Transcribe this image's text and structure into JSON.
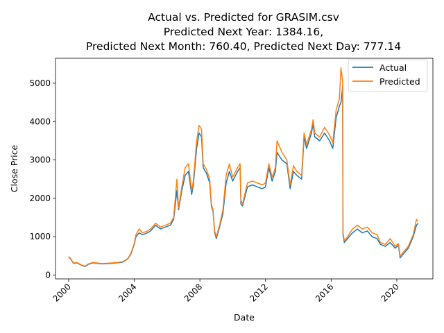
{
  "chart_data": {
    "type": "line",
    "title_lines": [
      "Actual vs. Predicted for GRASIM.csv",
      "Predicted Next Year: 1384.16,",
      "Predicted Next Month: 760.40, Predicted Next Day: 777.14"
    ],
    "xlabel": "Date",
    "ylabel": "Close Price",
    "xlim": [
      1999.2,
      2022.2
    ],
    "ylim": [
      -100,
      5650
    ],
    "x_ticks": [
      2000,
      2004,
      2008,
      2012,
      2016,
      2020
    ],
    "x_tick_labels": [
      "2000",
      "2004",
      "2008",
      "2012",
      "2016",
      "2020"
    ],
    "y_ticks": [
      0,
      1000,
      2000,
      3000,
      4000,
      5000
    ],
    "y_tick_labels": [
      "0",
      "1000",
      "2000",
      "3000",
      "4000",
      "5000"
    ],
    "grid": false,
    "legend": {
      "placement": "top-right"
    },
    "series": [
      {
        "name": "Actual",
        "color": "#1f77b4",
        "points": [
          [
            2000.0,
            470
          ],
          [
            2000.1,
            430
          ],
          [
            2000.3,
            300
          ],
          [
            2000.5,
            320
          ],
          [
            2000.8,
            250
          ],
          [
            2001.0,
            220
          ],
          [
            2001.2,
            280
          ],
          [
            2001.5,
            320
          ],
          [
            2001.8,
            300
          ],
          [
            2002.0,
            290
          ],
          [
            2002.5,
            300
          ],
          [
            2003.0,
            320
          ],
          [
            2003.3,
            340
          ],
          [
            2003.6,
            420
          ],
          [
            2003.8,
            550
          ],
          [
            2004.0,
            800
          ],
          [
            2004.1,
            1000
          ],
          [
            2004.3,
            1100
          ],
          [
            2004.5,
            1050
          ],
          [
            2004.8,
            1100
          ],
          [
            2005.0,
            1150
          ],
          [
            2005.3,
            1300
          ],
          [
            2005.6,
            1200
          ],
          [
            2005.9,
            1250
          ],
          [
            2006.2,
            1300
          ],
          [
            2006.4,
            1450
          ],
          [
            2006.6,
            2200
          ],
          [
            2006.7,
            1700
          ],
          [
            2006.9,
            2200
          ],
          [
            2007.1,
            2600
          ],
          [
            2007.3,
            2700
          ],
          [
            2007.5,
            2100
          ],
          [
            2007.6,
            2350
          ],
          [
            2007.8,
            3300
          ],
          [
            2007.95,
            3700
          ],
          [
            2008.1,
            3600
          ],
          [
            2008.2,
            2800
          ],
          [
            2008.4,
            2650
          ],
          [
            2008.6,
            2400
          ],
          [
            2008.7,
            1800
          ],
          [
            2008.8,
            1650
          ],
          [
            2008.9,
            1100
          ],
          [
            2009.0,
            950
          ],
          [
            2009.2,
            1250
          ],
          [
            2009.4,
            1600
          ],
          [
            2009.6,
            2400
          ],
          [
            2009.8,
            2700
          ],
          [
            2010.0,
            2450
          ],
          [
            2010.3,
            2700
          ],
          [
            2010.45,
            2800
          ],
          [
            2010.5,
            1850
          ],
          [
            2010.6,
            1800
          ],
          [
            2010.9,
            2300
          ],
          [
            2011.2,
            2350
          ],
          [
            2011.5,
            2300
          ],
          [
            2011.8,
            2250
          ],
          [
            2012.0,
            2300
          ],
          [
            2012.2,
            2800
          ],
          [
            2012.4,
            2450
          ],
          [
            2012.6,
            2700
          ],
          [
            2012.7,
            3200
          ],
          [
            2013.0,
            3000
          ],
          [
            2013.3,
            2900
          ],
          [
            2013.5,
            2250
          ],
          [
            2013.7,
            2700
          ],
          [
            2013.9,
            2600
          ],
          [
            2014.2,
            2500
          ],
          [
            2014.35,
            3600
          ],
          [
            2014.5,
            3300
          ],
          [
            2014.8,
            3700
          ],
          [
            2014.9,
            3950
          ],
          [
            2015.0,
            3600
          ],
          [
            2015.3,
            3500
          ],
          [
            2015.6,
            3700
          ],
          [
            2015.9,
            3500
          ],
          [
            2016.1,
            3300
          ],
          [
            2016.3,
            4100
          ],
          [
            2016.5,
            4400
          ],
          [
            2016.6,
            4500
          ],
          [
            2016.7,
            4900
          ],
          [
            2016.72,
            1050
          ],
          [
            2016.8,
            850
          ],
          [
            2017.0,
            950
          ],
          [
            2017.3,
            1100
          ],
          [
            2017.6,
            1200
          ],
          [
            2017.9,
            1100
          ],
          [
            2018.2,
            1150
          ],
          [
            2018.5,
            1000
          ],
          [
            2018.8,
            950
          ],
          [
            2019.0,
            800
          ],
          [
            2019.3,
            750
          ],
          [
            2019.6,
            850
          ],
          [
            2019.9,
            700
          ],
          [
            2020.1,
            780
          ],
          [
            2020.2,
            450
          ],
          [
            2020.4,
            550
          ],
          [
            2020.7,
            700
          ],
          [
            2021.0,
            1000
          ],
          [
            2021.2,
            1300
          ],
          [
            2021.3,
            1350
          ]
        ]
      },
      {
        "name": "Predicted",
        "color": "#ff7f0e",
        "points": [
          [
            2000.0,
            480
          ],
          [
            2000.1,
            440
          ],
          [
            2000.3,
            310
          ],
          [
            2000.5,
            330
          ],
          [
            2000.8,
            260
          ],
          [
            2001.0,
            230
          ],
          [
            2001.2,
            290
          ],
          [
            2001.5,
            330
          ],
          [
            2001.8,
            310
          ],
          [
            2002.0,
            300
          ],
          [
            2002.5,
            310
          ],
          [
            2003.0,
            330
          ],
          [
            2003.3,
            350
          ],
          [
            2003.6,
            430
          ],
          [
            2003.8,
            570
          ],
          [
            2004.0,
            820
          ],
          [
            2004.1,
            1050
          ],
          [
            2004.3,
            1200
          ],
          [
            2004.5,
            1100
          ],
          [
            2004.8,
            1150
          ],
          [
            2005.0,
            1200
          ],
          [
            2005.3,
            1350
          ],
          [
            2005.6,
            1250
          ],
          [
            2005.9,
            1300
          ],
          [
            2006.2,
            1350
          ],
          [
            2006.4,
            1500
          ],
          [
            2006.6,
            2500
          ],
          [
            2006.7,
            1750
          ],
          [
            2006.9,
            2300
          ],
          [
            2007.1,
            2800
          ],
          [
            2007.3,
            2900
          ],
          [
            2007.5,
            2200
          ],
          [
            2007.6,
            2450
          ],
          [
            2007.8,
            3500
          ],
          [
            2007.95,
            3900
          ],
          [
            2008.1,
            3800
          ],
          [
            2008.2,
            2900
          ],
          [
            2008.4,
            2750
          ],
          [
            2008.6,
            2500
          ],
          [
            2008.7,
            1850
          ],
          [
            2008.8,
            1700
          ],
          [
            2008.9,
            1150
          ],
          [
            2009.0,
            1000
          ],
          [
            2009.2,
            1300
          ],
          [
            2009.4,
            1700
          ],
          [
            2009.6,
            2600
          ],
          [
            2009.8,
            2900
          ],
          [
            2010.0,
            2550
          ],
          [
            2010.3,
            2800
          ],
          [
            2010.45,
            2900
          ],
          [
            2010.5,
            1950
          ],
          [
            2010.6,
            1850
          ],
          [
            2010.9,
            2400
          ],
          [
            2011.2,
            2450
          ],
          [
            2011.5,
            2400
          ],
          [
            2011.8,
            2350
          ],
          [
            2012.0,
            2400
          ],
          [
            2012.2,
            2900
          ],
          [
            2012.4,
            2550
          ],
          [
            2012.6,
            2800
          ],
          [
            2012.7,
            3500
          ],
          [
            2013.0,
            3200
          ],
          [
            2013.3,
            3000
          ],
          [
            2013.5,
            2350
          ],
          [
            2013.7,
            2850
          ],
          [
            2013.9,
            2700
          ],
          [
            2014.2,
            2600
          ],
          [
            2014.35,
            3700
          ],
          [
            2014.5,
            3400
          ],
          [
            2014.8,
            3800
          ],
          [
            2014.9,
            4050
          ],
          [
            2015.0,
            3700
          ],
          [
            2015.3,
            3600
          ],
          [
            2015.6,
            3850
          ],
          [
            2015.9,
            3650
          ],
          [
            2016.1,
            3450
          ],
          [
            2016.3,
            4300
          ],
          [
            2016.5,
            4600
          ],
          [
            2016.6,
            5400
          ],
          [
            2016.7,
            5050
          ],
          [
            2016.72,
            1100
          ],
          [
            2016.8,
            900
          ],
          [
            2017.0,
            1000
          ],
          [
            2017.3,
            1200
          ],
          [
            2017.6,
            1300
          ],
          [
            2017.9,
            1200
          ],
          [
            2018.2,
            1250
          ],
          [
            2018.5,
            1100
          ],
          [
            2018.8,
            1050
          ],
          [
            2019.0,
            850
          ],
          [
            2019.3,
            800
          ],
          [
            2019.6,
            950
          ],
          [
            2019.9,
            750
          ],
          [
            2020.1,
            820
          ],
          [
            2020.2,
            500
          ],
          [
            2020.4,
            600
          ],
          [
            2020.7,
            750
          ],
          [
            2021.0,
            1050
          ],
          [
            2021.2,
            1450
          ],
          [
            2021.3,
            1400
          ]
        ]
      }
    ]
  }
}
